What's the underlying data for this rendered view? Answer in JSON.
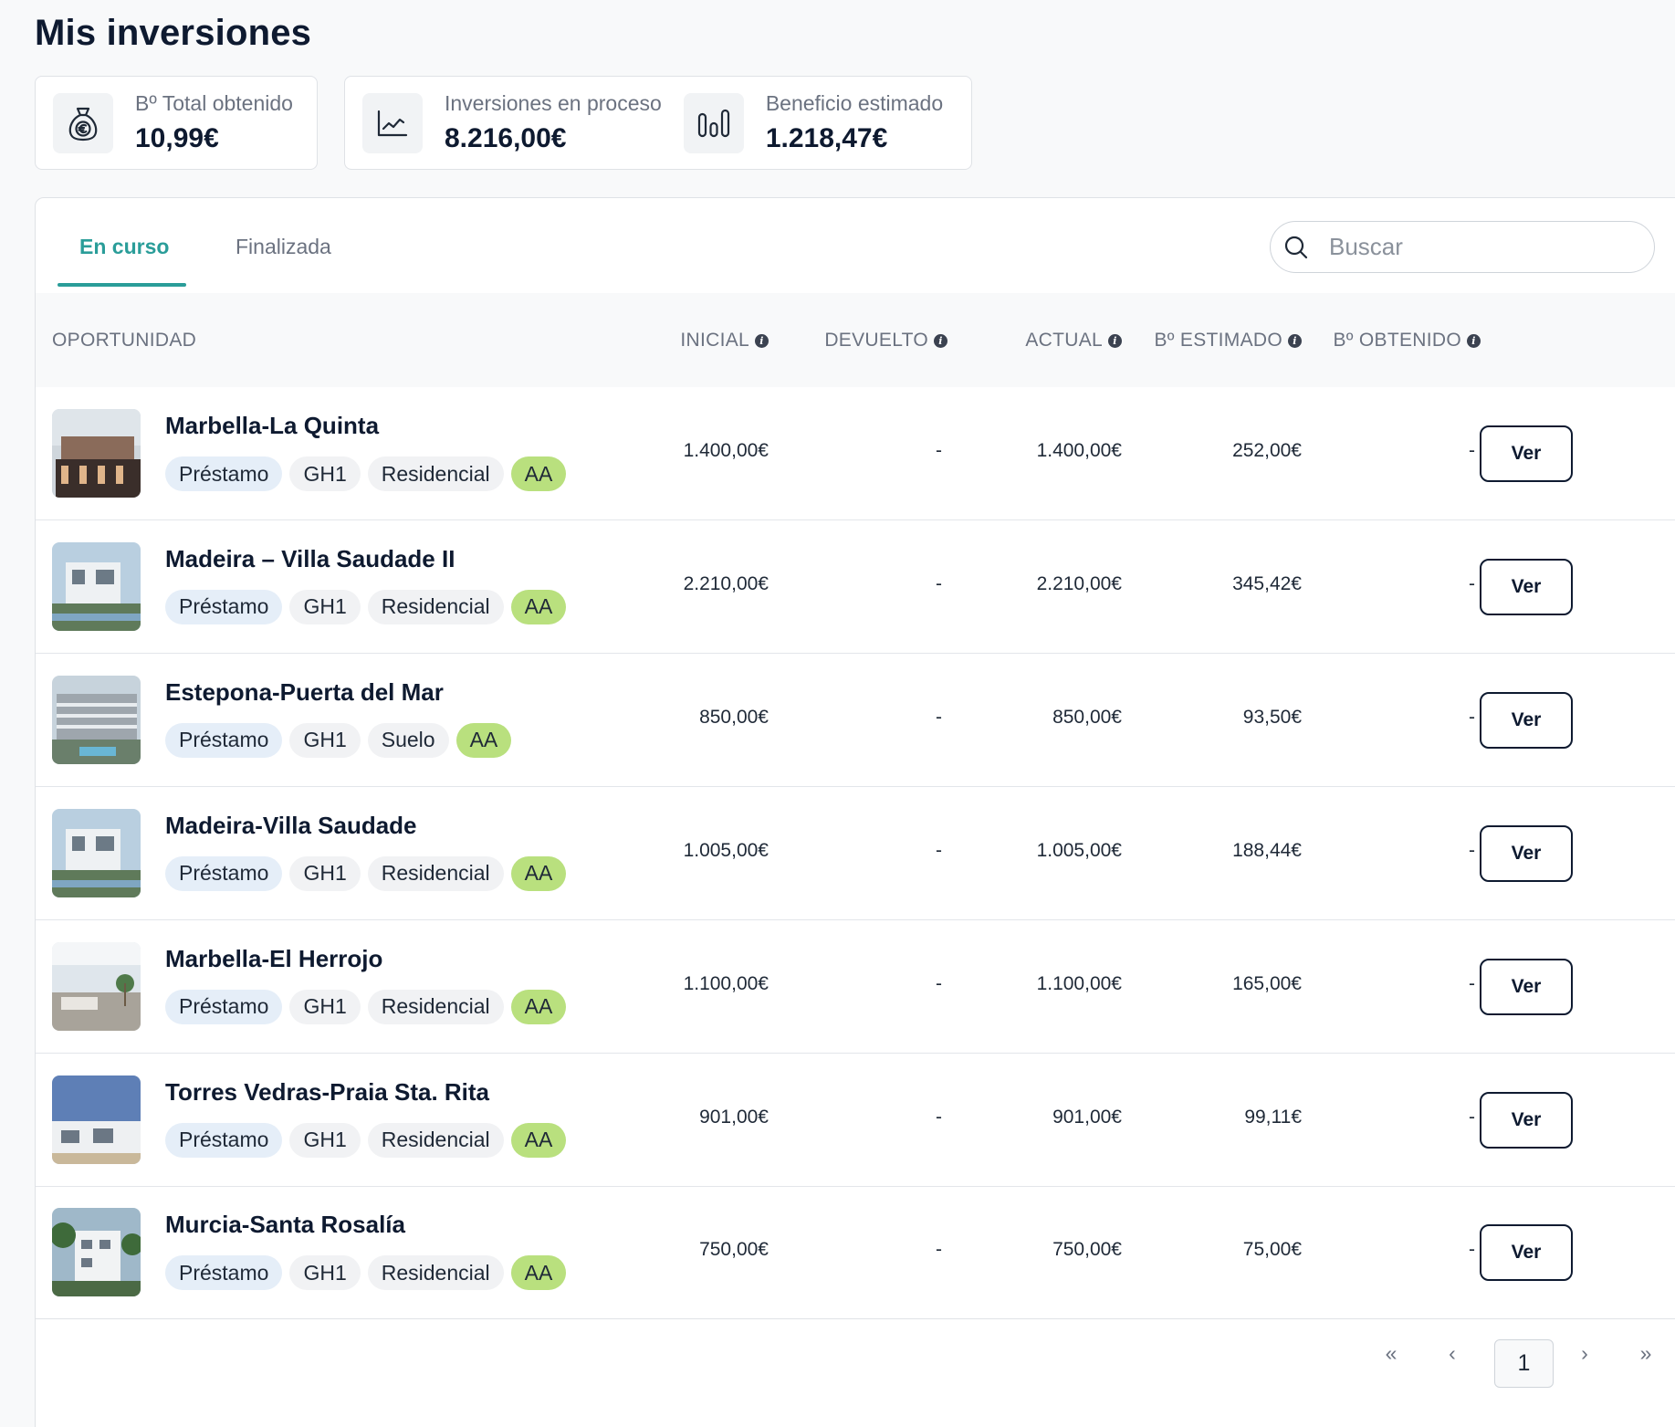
{
  "page": {
    "title": "Mis inversiones"
  },
  "stats": {
    "total": {
      "label": "Bº Total obtenido",
      "value": "10,99€",
      "icon": "money-bag-euro-icon"
    },
    "in_process": {
      "label": "Inversiones en proceso",
      "value": "8.216,00€",
      "icon": "line-chart-icon"
    },
    "estimated": {
      "label": "Beneficio estimado",
      "value": "1.218,47€",
      "icon": "bar-chart-icon"
    }
  },
  "tabs": [
    {
      "label": "En curso",
      "active": true
    },
    {
      "label": "Finalizada",
      "active": false
    }
  ],
  "search": {
    "placeholder": "Buscar",
    "value": ""
  },
  "table": {
    "columns": {
      "opportunity": "OPORTUNIDAD",
      "initial": "INICIAL",
      "returned": "DEVUELTO",
      "current": "ACTUAL",
      "estimated": "Bº ESTIMADO",
      "obtained": "Bº OBTENIDO"
    },
    "rows": [
      {
        "title": "Marbella-La Quinta",
        "tags": [
          "Préstamo",
          "GH1",
          "Residencial",
          "AA"
        ],
        "initial": "1.400,00€",
        "returned": "-",
        "current": "1.400,00€",
        "estimated": "252,00€",
        "obtained": "-",
        "action": "Ver"
      },
      {
        "title": "Madeira – Villa Saudade II",
        "tags": [
          "Préstamo",
          "GH1",
          "Residencial",
          "AA"
        ],
        "initial": "2.210,00€",
        "returned": "-",
        "current": "2.210,00€",
        "estimated": "345,42€",
        "obtained": "-",
        "action": "Ver"
      },
      {
        "title": "Estepona-Puerta del Mar",
        "tags": [
          "Préstamo",
          "GH1",
          "Suelo",
          "AA"
        ],
        "initial": "850,00€",
        "returned": "-",
        "current": "850,00€",
        "estimated": "93,50€",
        "obtained": "-",
        "action": "Ver"
      },
      {
        "title": "Madeira-Villa Saudade",
        "tags": [
          "Préstamo",
          "GH1",
          "Residencial",
          "AA"
        ],
        "initial": "1.005,00€",
        "returned": "-",
        "current": "1.005,00€",
        "estimated": "188,44€",
        "obtained": "-",
        "action": "Ver"
      },
      {
        "title": "Marbella-El Herrojo",
        "tags": [
          "Préstamo",
          "GH1",
          "Residencial",
          "AA"
        ],
        "initial": "1.100,00€",
        "returned": "-",
        "current": "1.100,00€",
        "estimated": "165,00€",
        "obtained": "-",
        "action": "Ver"
      },
      {
        "title": "Torres Vedras-Praia Sta. Rita",
        "tags": [
          "Préstamo",
          "GH1",
          "Residencial",
          "AA"
        ],
        "initial": "901,00€",
        "returned": "-",
        "current": "901,00€",
        "estimated": "99,11€",
        "obtained": "-",
        "action": "Ver"
      },
      {
        "title": "Murcia-Santa Rosalía",
        "tags": [
          "Préstamo",
          "GH1",
          "Residencial",
          "AA"
        ],
        "initial": "750,00€",
        "returned": "-",
        "current": "750,00€",
        "estimated": "75,00€",
        "obtained": "-",
        "action": "Ver"
      }
    ]
  },
  "pagination": {
    "first": "«",
    "prev": "‹",
    "current": "1",
    "next": "›",
    "last": "»"
  },
  "colors": {
    "accent": "#2a9d99",
    "tag_blue": "#e5eef8",
    "tag_gray": "#f1f2f4",
    "tag_green": "#b9e07e",
    "text_dark": "#0e1a30"
  }
}
